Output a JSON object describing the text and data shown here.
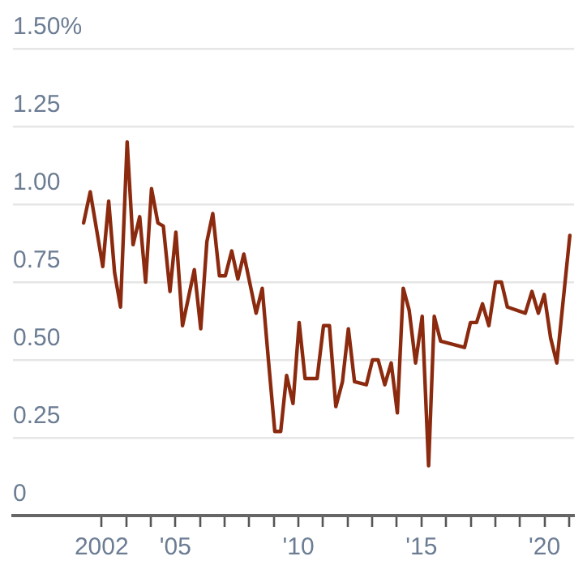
{
  "chart_data": {
    "type": "line",
    "x": [
      2001.27,
      2001.54,
      2002.05,
      2002.29,
      2002.53,
      2002.77,
      2003.04,
      2003.28,
      2003.55,
      2003.79,
      2004.03,
      2004.29,
      2004.51,
      2004.78,
      2005.02,
      2005.29,
      2005.53,
      2005.77,
      2006.03,
      2006.28,
      2006.52,
      2006.79,
      2007.03,
      2007.29,
      2007.54,
      2007.78,
      2008.28,
      2008.53,
      2008.78,
      2009.04,
      2009.28,
      2009.52,
      2009.78,
      2010.03,
      2010.27,
      2010.76,
      2011.02,
      2011.26,
      2011.52,
      2011.79,
      2012.03,
      2012.28,
      2012.76,
      2013.01,
      2013.24,
      2013.51,
      2013.77,
      2014.02,
      2014.26,
      2014.5,
      2014.76,
      2015.03,
      2015.29,
      2015.52,
      2015.78,
      2016.75,
      2016.99,
      2017.24,
      2017.48,
      2017.74,
      2018.01,
      2018.25,
      2018.49,
      2019.22,
      2019.49,
      2019.75,
      2019.99,
      2020.25,
      2020.5,
      2021.03
    ],
    "series": [
      {
        "color": "#8b2a0e",
        "values": [
          0.94,
          1.04,
          0.8,
          1.01,
          0.78,
          0.67,
          1.2,
          0.87,
          0.96,
          0.75,
          1.05,
          0.94,
          0.93,
          0.72,
          0.91,
          0.61,
          0.7,
          0.79,
          0.6,
          0.88,
          0.97,
          0.77,
          0.77,
          0.85,
          0.76,
          0.84,
          0.65,
          0.73,
          0.5,
          0.27,
          0.27,
          0.45,
          0.36,
          0.62,
          0.44,
          0.44,
          0.61,
          0.61,
          0.35,
          0.43,
          0.6,
          0.43,
          0.42,
          0.5,
          0.5,
          0.42,
          0.49,
          0.33,
          0.73,
          0.66,
          0.49,
          0.64,
          0.16,
          0.64,
          0.56,
          0.54,
          0.62,
          0.62,
          0.68,
          0.61,
          0.75,
          0.75,
          0.67,
          0.65,
          0.72,
          0.65,
          0.71,
          0.57,
          0.49,
          0.9
        ]
      }
    ],
    "xlim": [
      1998.4,
      2021.2
    ],
    "xticks": [
      2002,
      {
        "value": 2003,
        "label": null
      },
      {
        "value": 2004,
        "label": null
      },
      {
        "value": 2005,
        "label": "'05"
      },
      {
        "value": 2006,
        "label": null
      },
      {
        "value": 2007,
        "label": null
      },
      {
        "value": 2008,
        "label": null
      },
      {
        "value": 2009,
        "label": null
      },
      {
        "value": 2010,
        "label": "'10"
      },
      {
        "value": 2011,
        "label": null
      },
      {
        "value": 2012,
        "label": null
      },
      {
        "value": 2013,
        "label": null
      },
      {
        "value": 2014,
        "label": null
      },
      {
        "value": 2015,
        "label": "'15"
      },
      {
        "value": 2016,
        "label": null
      },
      {
        "value": 2017,
        "label": null
      },
      {
        "value": 2018,
        "label": null
      },
      {
        "value": 2019,
        "label": null
      },
      {
        "value": 2020,
        "label": "'20"
      },
      {
        "value": 2021,
        "label": null
      }
    ],
    "ylim": [
      0,
      1.5
    ],
    "yticks": [
      0,
      0.25,
      {
        "value": 0.5,
        "label": "0.50"
      },
      0.75,
      {
        "value": 1,
        "label": "1.00"
      },
      1.25,
      {
        "value": 1.5,
        "label": "1.50%"
      }
    ],
    "grid": "y",
    "legend": false,
    "marker": "none",
    "line_style": "solid"
  }
}
